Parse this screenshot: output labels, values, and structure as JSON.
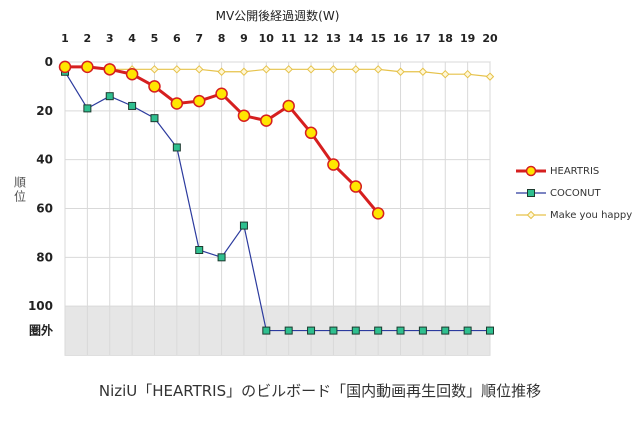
{
  "chart_data": {
    "type": "line",
    "title": "MV公開後経過週数(W)",
    "ylabel": "順位",
    "x": [
      1,
      2,
      3,
      4,
      5,
      6,
      7,
      8,
      9,
      10,
      11,
      12,
      13,
      14,
      15,
      16,
      17,
      18,
      19,
      20
    ],
    "ylim": [
      0,
      120
    ],
    "y_reversed": true,
    "y_ticks": [
      0,
      20,
      40,
      60,
      80,
      100
    ],
    "out_of_chart_label": "圏外",
    "out_of_chart_value": 110,
    "out_of_chart_band": [
      100,
      120
    ],
    "grid": true,
    "legend_position": "right",
    "series": [
      {
        "name": "HEARTRIS",
        "color": "#d61f1f",
        "marker": "circle",
        "values": [
          2,
          2,
          3,
          5,
          10,
          17,
          16,
          13,
          22,
          24,
          18,
          29,
          42,
          51,
          62,
          null,
          null,
          null,
          null,
          null
        ]
      },
      {
        "name": "COCONUT",
        "color": "#2c3b9e",
        "marker": "square",
        "values": [
          4,
          19,
          14,
          18,
          23,
          35,
          77,
          80,
          67,
          110,
          110,
          110,
          110,
          110,
          110,
          110,
          110,
          110,
          110,
          110
        ]
      },
      {
        "name": "Make you happy",
        "color": "#e6c24a",
        "marker": "diamond",
        "values": [
          2,
          2,
          3,
          3,
          3,
          3,
          3,
          4,
          4,
          3,
          3,
          3,
          3,
          3,
          3,
          4,
          4,
          5,
          5,
          6
        ]
      }
    ]
  },
  "caption": "NiziU「HEARTRIS」のビルボード「国内動画再生回数」順位推移"
}
